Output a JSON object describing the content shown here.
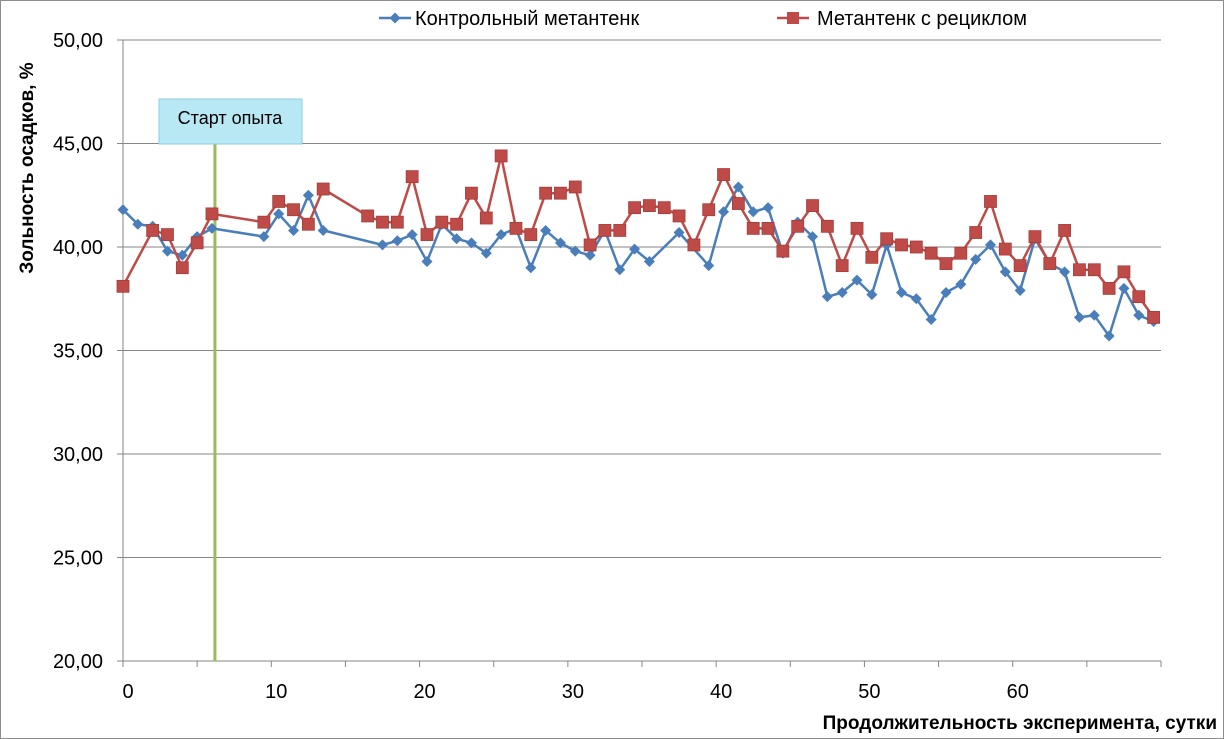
{
  "chart_data": {
    "type": "line",
    "xlabel": "Продолжительность эксперимента, сутки",
    "ylabel": "Зольность осадков, %",
    "xlim": [
      0,
      70
    ],
    "ylim": [
      20,
      50
    ],
    "x_ticks": [
      "0",
      "10",
      "20",
      "30",
      "40",
      "50",
      "60"
    ],
    "x_tick_values": [
      0,
      10,
      20,
      30,
      40,
      50,
      60
    ],
    "y_ticks": [
      "20,00",
      "25,00",
      "30,00",
      "35,00",
      "40,00",
      "45,00",
      "50,00"
    ],
    "y_tick_values": [
      20,
      25,
      30,
      35,
      40,
      45,
      50
    ],
    "grid": "horizontal",
    "legend_position": "top",
    "annotation": {
      "text": "Старт опыта",
      "x": 6.2,
      "line_color": "#9bbb59",
      "box_color": "#b7e8f3"
    },
    "series": [
      {
        "name": "Контрольный метантенк",
        "color": "#4a7ebb",
        "marker": "diamond",
        "points": [
          [
            0,
            41.8
          ],
          [
            1,
            41.1
          ],
          [
            2,
            41.0
          ],
          [
            3,
            39.8
          ],
          [
            4,
            39.6
          ],
          [
            5,
            40.5
          ],
          [
            6,
            40.9
          ],
          [
            9.5,
            40.5
          ],
          [
            10.5,
            41.6
          ],
          [
            11.5,
            40.8
          ],
          [
            12.5,
            42.5
          ],
          [
            13.5,
            40.8
          ],
          [
            17.5,
            40.1
          ],
          [
            18.5,
            40.3
          ],
          [
            19.5,
            40.6
          ],
          [
            20.5,
            39.3
          ],
          [
            21.5,
            41.1
          ],
          [
            22.5,
            40.4
          ],
          [
            23.5,
            40.2
          ],
          [
            24.5,
            39.7
          ],
          [
            25.5,
            40.6
          ],
          [
            26.5,
            40.9
          ],
          [
            27.5,
            39.0
          ],
          [
            28.5,
            40.8
          ],
          [
            29.5,
            40.2
          ],
          [
            30.5,
            39.8
          ],
          [
            31.5,
            39.6
          ],
          [
            32.5,
            40.8
          ],
          [
            33.5,
            38.9
          ],
          [
            34.5,
            39.9
          ],
          [
            35.5,
            39.3
          ],
          [
            37.5,
            40.7
          ],
          [
            39.5,
            39.1
          ],
          [
            40.5,
            41.7
          ],
          [
            41.5,
            42.9
          ],
          [
            42.5,
            41.7
          ],
          [
            43.5,
            41.9
          ],
          [
            44.5,
            39.7
          ],
          [
            45.5,
            41.2
          ],
          [
            46.5,
            40.5
          ],
          [
            47.5,
            37.6
          ],
          [
            48.5,
            37.8
          ],
          [
            49.5,
            38.4
          ],
          [
            50.5,
            37.7
          ],
          [
            51.5,
            40.1
          ],
          [
            52.5,
            37.8
          ],
          [
            53.5,
            37.5
          ],
          [
            54.5,
            36.5
          ],
          [
            55.5,
            37.8
          ],
          [
            56.5,
            38.2
          ],
          [
            57.5,
            39.4
          ],
          [
            58.5,
            40.1
          ],
          [
            59.5,
            38.8
          ],
          [
            60.5,
            37.9
          ],
          [
            61.5,
            40.4
          ],
          [
            62.5,
            39.2
          ],
          [
            63.5,
            38.8
          ],
          [
            64.5,
            36.6
          ],
          [
            65.5,
            36.7
          ],
          [
            66.5,
            35.7
          ],
          [
            67.5,
            38.0
          ],
          [
            68.5,
            36.7
          ],
          [
            69.5,
            36.4
          ]
        ]
      },
      {
        "name": "Метантенк с рециклом",
        "color": "#be4b48",
        "marker": "square",
        "points": [
          [
            0,
            38.1
          ],
          [
            2,
            40.8
          ],
          [
            3,
            40.6
          ],
          [
            4,
            39.0
          ],
          [
            5,
            40.2
          ],
          [
            6,
            41.6
          ],
          [
            9.5,
            41.2
          ],
          [
            10.5,
            42.2
          ],
          [
            11.5,
            41.8
          ],
          [
            12.5,
            41.1
          ],
          [
            13.5,
            42.8
          ],
          [
            16.5,
            41.5
          ],
          [
            17.5,
            41.2
          ],
          [
            18.5,
            41.2
          ],
          [
            19.5,
            43.4
          ],
          [
            20.5,
            40.6
          ],
          [
            21.5,
            41.2
          ],
          [
            22.5,
            41.1
          ],
          [
            23.5,
            42.6
          ],
          [
            24.5,
            41.4
          ],
          [
            25.5,
            44.4
          ],
          [
            26.5,
            40.9
          ],
          [
            27.5,
            40.6
          ],
          [
            28.5,
            42.6
          ],
          [
            29.5,
            42.6
          ],
          [
            30.5,
            42.9
          ],
          [
            31.5,
            40.1
          ],
          [
            32.5,
            40.8
          ],
          [
            33.5,
            40.8
          ],
          [
            34.5,
            41.9
          ],
          [
            35.5,
            42.0
          ],
          [
            36.5,
            41.9
          ],
          [
            37.5,
            41.5
          ],
          [
            38.5,
            40.1
          ],
          [
            39.5,
            41.8
          ],
          [
            40.5,
            43.5
          ],
          [
            41.5,
            42.1
          ],
          [
            42.5,
            40.9
          ],
          [
            43.5,
            40.9
          ],
          [
            44.5,
            39.8
          ],
          [
            45.5,
            41.0
          ],
          [
            46.5,
            42.0
          ],
          [
            47.5,
            41.0
          ],
          [
            48.5,
            39.1
          ],
          [
            49.5,
            40.9
          ],
          [
            50.5,
            39.5
          ],
          [
            51.5,
            40.4
          ],
          [
            52.5,
            40.1
          ],
          [
            53.5,
            40.0
          ],
          [
            54.5,
            39.7
          ],
          [
            55.5,
            39.2
          ],
          [
            56.5,
            39.7
          ],
          [
            57.5,
            40.7
          ],
          [
            58.5,
            42.2
          ],
          [
            59.5,
            39.9
          ],
          [
            60.5,
            39.1
          ],
          [
            61.5,
            40.5
          ],
          [
            62.5,
            39.2
          ],
          [
            63.5,
            40.8
          ],
          [
            64.5,
            38.9
          ],
          [
            65.5,
            38.9
          ],
          [
            66.5,
            38.0
          ],
          [
            67.5,
            38.8
          ],
          [
            68.5,
            37.6
          ],
          [
            69.5,
            36.6
          ]
        ]
      }
    ]
  }
}
